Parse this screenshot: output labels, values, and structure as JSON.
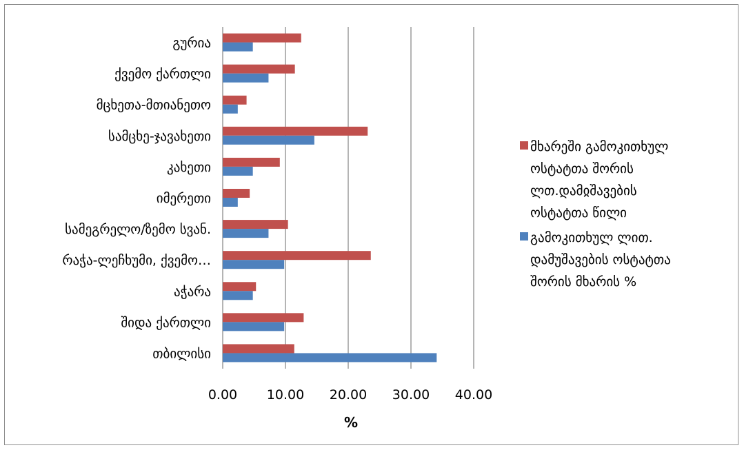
{
  "chart_data": {
    "type": "bar",
    "orientation": "horizontal",
    "categories": [
      "გურია",
      "ქვემო ქართლი",
      "მცხეთა-მთიანეთო",
      "სამცხე-ჯავახეთი",
      "კახეთი",
      "იმერეთი",
      "სამეგრელო/ზემო სვან.",
      "რაჭა-ლეჩხუმი, ქვემო…",
      "აჭარა",
      "შიდა ქართლი",
      "თბილისი"
    ],
    "series": [
      {
        "name_lines": [
          "მხარეში გამოკითხულ",
          "ოსტატთა შორის",
          "ლთ.დამჲშავების",
          "ოსტატთა წილი"
        ],
        "color": "#c0504d",
        "values": [
          12.5,
          11.5,
          3.8,
          23.1,
          9.1,
          4.3,
          10.4,
          23.6,
          5.3,
          12.9,
          11.4
        ]
      },
      {
        "name_lines": [
          "გამოკითხულ ლით.",
          "დამუშავების ოსტატთა",
          "შორის მხარის %"
        ],
        "color": "#4f81bd",
        "values": [
          4.8,
          7.3,
          2.4,
          14.6,
          4.8,
          2.4,
          7.3,
          9.8,
          4.8,
          9.8,
          34.1
        ]
      }
    ],
    "xlim": [
      0,
      40
    ],
    "xticks": [
      "0.00",
      "10.00",
      "20.00",
      "30.00",
      "40.00"
    ],
    "xlabel": "%",
    "grid": "vertical",
    "legend": "right"
  }
}
